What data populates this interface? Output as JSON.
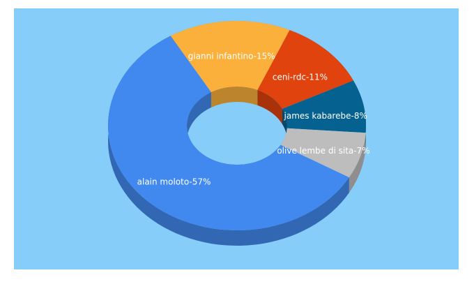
{
  "chart_data": {
    "type": "donut",
    "value_labels": [
      "gianni infantino-15%",
      "ceni-rdc-11%",
      "james kabarebe-8%",
      "olive lembe di sita-7%",
      "alain moloto-57%"
    ],
    "values": [
      15,
      11,
      8,
      7,
      57
    ],
    "colors": [
      "#fbb03b",
      "#e0430d",
      "#05618f",
      "#bdbdbd",
      "#4189ef"
    ]
  }
}
